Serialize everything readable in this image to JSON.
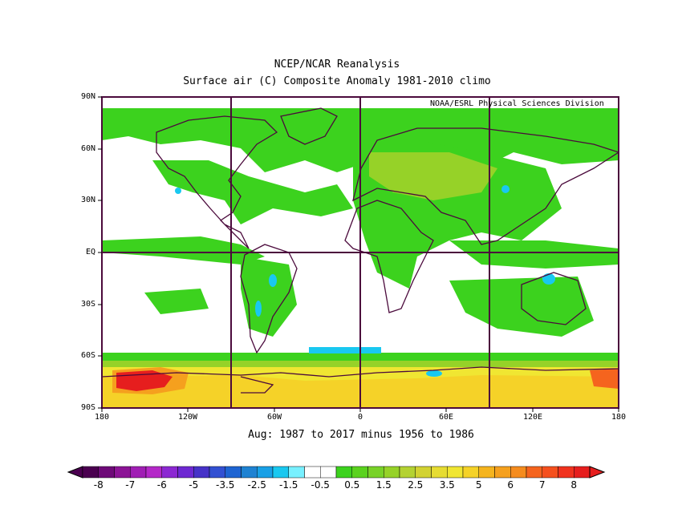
{
  "title_line1": "NCEP/NCAR Reanalysis",
  "title_line2": "Surface air (C) Composite Anomaly 1981-2010 climo",
  "credit": "NOAA/ESRL Physical Sciences Division",
  "subtitle": "Aug: 1987 to 2017 minus 1956 to 1986",
  "y_ticks": [
    "90N",
    "60N",
    "30N",
    "EQ",
    "30S",
    "60S",
    "90S"
  ],
  "x_ticks": [
    "180",
    "120W",
    "60W",
    "0",
    "60E",
    "120E",
    "180"
  ],
  "colorbar": {
    "labels": [
      "-8",
      "-7",
      "-6",
      "-5",
      "-3.5",
      "-2.5",
      "-1.5",
      "-0.5",
      "0.5",
      "1.5",
      "2.5",
      "3.5",
      "5",
      "6",
      "7",
      "8"
    ],
    "colors": [
      "#4b0050",
      "#6e0a78",
      "#8c1496",
      "#a01eb4",
      "#b428c8",
      "#8c28d2",
      "#6e28d2",
      "#4632c8",
      "#3250d2",
      "#1e64d2",
      "#1e82d2",
      "#19a0e6",
      "#19c8f0",
      "#78f0ff",
      "#ffffff",
      "#ffffff",
      "#3cd21e",
      "#5ad21e",
      "#78d228",
      "#96d228",
      "#b4d232",
      "#d2d232",
      "#e6dc32",
      "#f0e632",
      "#f5d228",
      "#f5b41e",
      "#f5a01e",
      "#f58c1e",
      "#f5641e",
      "#f5501e",
      "#f0321e",
      "#e61e1e"
    ]
  },
  "map_colors": {
    "warm_light": "#3cd21e",
    "warm_mid": "#96d228",
    "warm_yellow": "#f0e632",
    "warm_orange": "#f5a01e",
    "hot": "#e61e1e",
    "cool": "#19c8f0",
    "coast": "#4b0a3c"
  }
}
